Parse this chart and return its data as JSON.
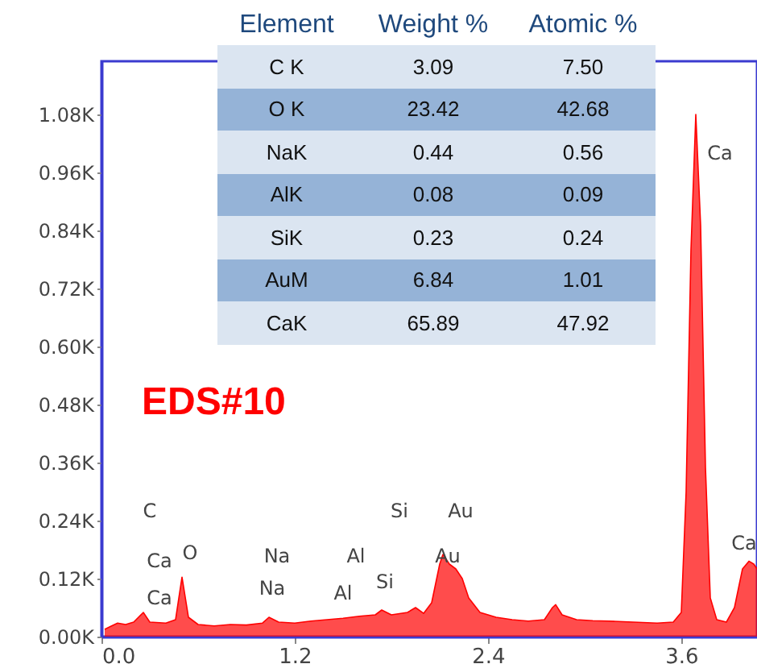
{
  "chart_data": {
    "type": "area",
    "x": [
      0.02,
      0.05,
      0.1,
      0.15,
      0.2,
      0.26,
      0.3,
      0.4,
      0.46,
      0.5,
      0.54,
      0.6,
      0.7,
      0.8,
      0.9,
      1.0,
      1.04,
      1.1,
      1.2,
      1.3,
      1.4,
      1.5,
      1.6,
      1.7,
      1.74,
      1.8,
      1.9,
      1.95,
      2.0,
      2.05,
      2.1,
      2.12,
      2.16,
      2.2,
      2.24,
      2.28,
      2.35,
      2.45,
      2.55,
      2.65,
      2.75,
      2.8,
      2.82,
      2.86,
      2.95,
      3.05,
      3.15,
      3.3,
      3.45,
      3.55,
      3.6,
      3.63,
      3.66,
      3.69,
      3.72,
      3.75,
      3.78,
      3.82,
      3.88,
      3.93,
      3.98,
      4.02,
      4.05,
      4.07
    ],
    "series": [
      {
        "color": "#ff0000",
        "values": [
          15,
          20,
          28,
          25,
          30,
          50,
          30,
          28,
          35,
          123,
          40,
          25,
          22,
          25,
          24,
          28,
          40,
          30,
          28,
          32,
          35,
          38,
          42,
          45,
          55,
          45,
          50,
          60,
          48,
          70,
          150,
          170,
          150,
          140,
          120,
          80,
          50,
          40,
          35,
          32,
          35,
          60,
          66,
          45,
          35,
          33,
          32,
          30,
          28,
          30,
          50,
          300,
          800,
          1080,
          850,
          350,
          80,
          35,
          30,
          60,
          140,
          156,
          150,
          140
        ]
      }
    ],
    "xlim": [
      0,
      4.07
    ],
    "xticks": [
      {
        "value": 0,
        "label": "0.0"
      },
      {
        "value": 1.2,
        "label": "1.2"
      },
      {
        "value": 2.4,
        "label": "2.4"
      },
      {
        "value": 3.6,
        "label": "3.6"
      }
    ],
    "ylim": [
      0,
      1190
    ],
    "yticks": [
      {
        "value": 0,
        "label": "0.00K"
      },
      {
        "value": 120,
        "label": "0.12K"
      },
      {
        "value": 240,
        "label": "0.24K"
      },
      {
        "value": 360,
        "label": "0.36K"
      },
      {
        "value": 480,
        "label": "0.48K"
      },
      {
        "value": 600,
        "label": "0.60K"
      },
      {
        "value": 720,
        "label": "0.72K"
      },
      {
        "value": 840,
        "label": "0.84K"
      },
      {
        "value": 960,
        "label": "0.96K"
      },
      {
        "value": 1080,
        "label": "1.08K"
      }
    ],
    "grid": false,
    "annotations": [
      "EDS#10",
      "Element",
      "Weight %",
      "Atomic %",
      "C K",
      "3.09",
      "7.50",
      "O K",
      "23.42",
      "42.68",
      "NaK",
      "0.44",
      "0.56",
      "AlK",
      "0.08",
      "0.09",
      "SiK",
      "0.23",
      "0.24",
      "AuM",
      "6.84",
      "1.01",
      "CaK",
      "65.89",
      "47.92",
      "C",
      "Ca",
      "O",
      "Ca",
      "Na",
      "Na",
      "Al",
      "Al",
      "Si",
      "Si",
      "Au",
      "Au",
      "Ca",
      "Ca"
    ]
  }
}
